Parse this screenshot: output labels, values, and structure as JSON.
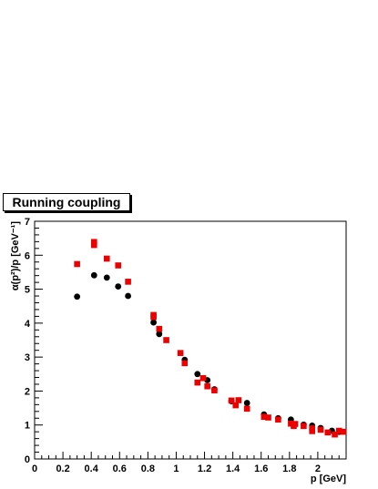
{
  "chart_data": {
    "type": "scatter",
    "title": "Running coupling",
    "xlabel": "p [GeV]",
    "ylabel": "α(p²)/p [GeV⁻¹]",
    "xlim": [
      0,
      2.2
    ],
    "ylim": [
      0,
      7
    ],
    "x_ticks": [
      "0",
      "0.2",
      "0.4",
      "0.6",
      "0.8",
      "1",
      "1.2",
      "1.4",
      "1.6",
      "1.8",
      "2"
    ],
    "y_ticks": [
      "0",
      "1",
      "2",
      "3",
      "4",
      "5",
      "6",
      "7"
    ],
    "series": [
      {
        "marker": "circle",
        "color": "#000000",
        "points": [
          [
            0.3,
            4.78
          ],
          [
            0.42,
            5.41
          ],
          [
            0.51,
            5.34
          ],
          [
            0.59,
            5.08
          ],
          [
            0.66,
            4.8
          ],
          [
            0.84,
            4.02
          ],
          [
            0.88,
            3.68
          ],
          [
            1.06,
            2.92
          ],
          [
            1.15,
            2.5
          ],
          [
            1.22,
            2.32
          ],
          [
            1.27,
            2.05
          ],
          [
            1.39,
            1.7
          ],
          [
            1.5,
            1.65
          ],
          [
            1.62,
            1.31
          ],
          [
            1.72,
            1.2
          ],
          [
            1.81,
            1.16
          ],
          [
            1.9,
            1.01
          ],
          [
            1.96,
            0.98
          ],
          [
            2.02,
            0.91
          ],
          [
            2.1,
            0.83
          ],
          [
            2.15,
            0.8
          ]
        ]
      },
      {
        "marker": "square",
        "color": "#ee0000",
        "points": [
          [
            0.3,
            5.74
          ],
          [
            0.42,
            6.39
          ],
          [
            0.42,
            6.3
          ],
          [
            0.51,
            5.9
          ],
          [
            0.59,
            5.7
          ],
          [
            0.66,
            5.22
          ],
          [
            0.84,
            4.24
          ],
          [
            0.84,
            4.18
          ],
          [
            0.88,
            3.83
          ],
          [
            0.93,
            3.5
          ],
          [
            1.03,
            3.12
          ],
          [
            1.06,
            2.82
          ],
          [
            1.15,
            2.25
          ],
          [
            1.19,
            2.38
          ],
          [
            1.22,
            2.14
          ],
          [
            1.27,
            2.02
          ],
          [
            1.39,
            1.72
          ],
          [
            1.42,
            1.58
          ],
          [
            1.44,
            1.73
          ],
          [
            1.5,
            1.48
          ],
          [
            1.62,
            1.24
          ],
          [
            1.65,
            1.22
          ],
          [
            1.72,
            1.16
          ],
          [
            1.81,
            1.04
          ],
          [
            1.83,
            0.97
          ],
          [
            1.84,
            1.03
          ],
          [
            1.9,
            0.97
          ],
          [
            1.96,
            0.9
          ],
          [
            1.96,
            0.82
          ],
          [
            2.02,
            0.86
          ],
          [
            2.07,
            0.78
          ],
          [
            2.12,
            0.72
          ],
          [
            2.15,
            0.83
          ],
          [
            2.18,
            0.8
          ]
        ]
      }
    ]
  }
}
